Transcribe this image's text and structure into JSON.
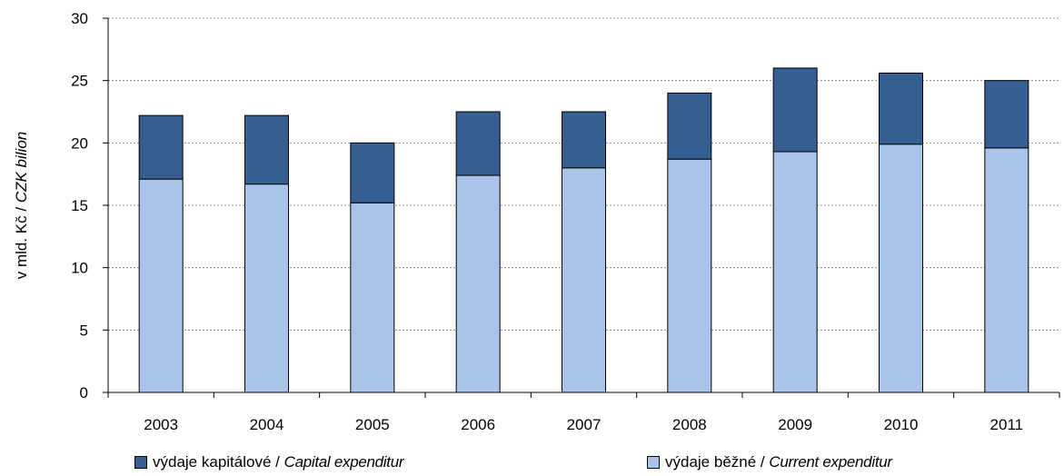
{
  "chart_data": {
    "type": "bar",
    "stacked": true,
    "categories": [
      "2003",
      "2004",
      "2005",
      "2006",
      "2007",
      "2008",
      "2009",
      "2010",
      "2011"
    ],
    "series": [
      {
        "name": "výdaje běžné / Current expenditur",
        "label_main": "výdaje běžné",
        "label_sep": " / ",
        "label_en": "Current expenditur",
        "color": "#a9c4e8",
        "values": [
          17.1,
          16.7,
          15.2,
          17.4,
          18.0,
          18.7,
          19.3,
          19.9,
          19.6
        ]
      },
      {
        "name": "výdaje kapitálové / Capital expenditur",
        "label_main": "výdaje kapitálové",
        "label_sep": " / ",
        "label_en": "Capital expenditur",
        "color": "#355f91",
        "values": [
          5.1,
          5.5,
          4.8,
          5.1,
          4.5,
          5.3,
          6.7,
          5.7,
          5.4
        ]
      }
    ],
    "ylabel_main": "v mld. Kč",
    "ylabel_sep": " / ",
    "ylabel_en": "CZK bilion",
    "ylim": [
      0,
      30
    ],
    "yticks": [
      "0",
      "5",
      "10",
      "15",
      "20",
      "25",
      "30"
    ],
    "grid": true,
    "legend_position": "bottom"
  }
}
